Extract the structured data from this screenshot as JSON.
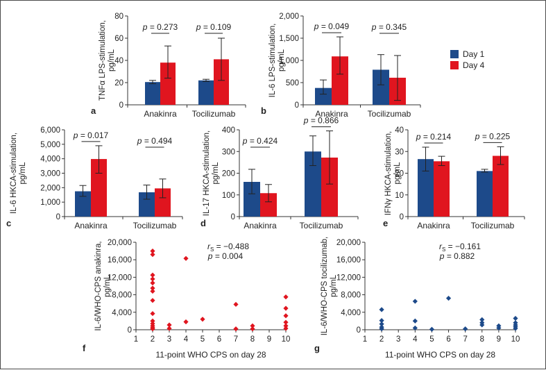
{
  "colors": {
    "day1": "#1d4a8a",
    "day4": "#e0151f",
    "axis": "#333333"
  },
  "legend": {
    "day1": "Day 1",
    "day4": "Day 4"
  },
  "chart_data": [
    {
      "panel": "a",
      "type": "bar",
      "ylabel": [
        "TNFα LPS-stimulation,",
        "pg/mL"
      ],
      "categories": [
        "Anakinra",
        "Tocilizumab"
      ],
      "ylim": [
        0,
        80
      ],
      "yticks": [
        0,
        20,
        40,
        60,
        80
      ],
      "ytick_labels": [
        "0",
        "20",
        "40",
        "60",
        "80"
      ],
      "series": [
        {
          "name": "Day 1",
          "values": [
            20.5,
            22
          ],
          "err_low": [
            19,
            21
          ],
          "err_high": [
            22,
            23
          ]
        },
        {
          "name": "Day 4",
          "values": [
            38,
            41
          ],
          "err_low": [
            24,
            22
          ],
          "err_high": [
            53,
            60
          ]
        }
      ],
      "pvalues": [
        "p = 0.273",
        "p = 0.109"
      ]
    },
    {
      "panel": "b",
      "type": "bar",
      "ylabel": [
        "IL-6 LPS-stimulation,",
        "pg/mL"
      ],
      "categories": [
        "Anakinra",
        "Tocilizumab"
      ],
      "ylim": [
        0,
        2000
      ],
      "yticks": [
        0,
        500,
        1000,
        1500,
        2000
      ],
      "ytick_labels": [
        "0",
        "500",
        "1,000",
        "1,500",
        "2,000"
      ],
      "series": [
        {
          "name": "Day 1",
          "values": [
            380,
            790
          ],
          "err_low": [
            240,
            450
          ],
          "err_high": [
            560,
            1130
          ]
        },
        {
          "name": "Day 4",
          "values": [
            1090,
            610
          ],
          "err_low": [
            690,
            100
          ],
          "err_high": [
            1530,
            1110
          ]
        }
      ],
      "pvalues": [
        "p = 0.049",
        "p = 0.345"
      ]
    },
    {
      "panel": "c",
      "type": "bar",
      "ylabel": [
        "IL-6 HKCA-stimulation,",
        "pg/mL"
      ],
      "categories": [
        "Anakinra",
        "Tocilizumab"
      ],
      "ylim": [
        0,
        6000
      ],
      "yticks": [
        0,
        1000,
        2000,
        3000,
        4000,
        5000,
        6000
      ],
      "ytick_labels": [
        "0",
        "1,000",
        "2,000",
        "3,000",
        "4,000",
        "5,000",
        "6,000"
      ],
      "series": [
        {
          "name": "Day 1",
          "values": [
            1750,
            1680
          ],
          "err_low": [
            1400,
            1200
          ],
          "err_high": [
            2150,
            2180
          ]
        },
        {
          "name": "Day 4",
          "values": [
            3980,
            1950
          ],
          "err_low": [
            3000,
            1300
          ],
          "err_high": [
            4900,
            2600
          ]
        }
      ],
      "pvalues": [
        "p = 0.017",
        "p = 0.494"
      ]
    },
    {
      "panel": "d",
      "type": "bar",
      "ylabel": [
        "IL-17 HKCA-stimulation,",
        "pg/mL"
      ],
      "categories": [
        "Anakinra",
        "Tocilizumab"
      ],
      "ylim": [
        0,
        400
      ],
      "yticks": [
        0,
        100,
        200,
        300,
        400
      ],
      "ytick_labels": [
        "0",
        "100",
        "200",
        "300",
        "400"
      ],
      "series": [
        {
          "name": "Day 1",
          "values": [
            160,
            300
          ],
          "err_low": [
            105,
            235
          ],
          "err_high": [
            218,
            372
          ]
        },
        {
          "name": "Day 4",
          "values": [
            108,
            272
          ],
          "err_low": [
            68,
            150
          ],
          "err_high": [
            148,
            395
          ]
        }
      ],
      "pvalues": [
        "p = 0.424",
        "p = 0.866"
      ]
    },
    {
      "panel": "e",
      "type": "bar",
      "ylabel": [
        "IFNγ HKCA-stimulation,",
        "pg/mL"
      ],
      "categories": [
        "Anakinra",
        "Tocilizumab"
      ],
      "ylim": [
        0,
        40
      ],
      "yticks": [
        0,
        10,
        20,
        30,
        40
      ],
      "ytick_labels": [
        "0",
        "10",
        "20",
        "30",
        "40"
      ],
      "series": [
        {
          "name": "Day 1",
          "values": [
            26.5,
            21
          ],
          "err_low": [
            21,
            20.5
          ],
          "err_high": [
            32,
            21.8
          ]
        },
        {
          "name": "Day 4",
          "values": [
            25.5,
            28
          ],
          "err_low": [
            23.5,
            24
          ],
          "err_high": [
            27.8,
            32.2
          ]
        }
      ],
      "pvalues": [
        "p = 0.214",
        "p = 0.225"
      ]
    },
    {
      "panel": "f",
      "type": "scatter",
      "ylabel": [
        "IL-6/WHO-CPS anakinra,",
        "pg/mL"
      ],
      "xlabel": "11-point WHO CPS on day 28",
      "xlim": [
        1,
        10
      ],
      "xticks": [
        1,
        2,
        3,
        4,
        5,
        6,
        7,
        8,
        9,
        10
      ],
      "ylim": [
        0,
        20000
      ],
      "yticks": [
        0,
        4000,
        8000,
        12000,
        16000,
        20000
      ],
      "ytick_labels": [
        "0",
        "4,000",
        "8,000",
        "12,000",
        "16,000",
        "20,000"
      ],
      "series_color": "day4",
      "points": [
        [
          2,
          18000
        ],
        [
          2,
          17200
        ],
        [
          2,
          12500
        ],
        [
          2,
          11600
        ],
        [
          2,
          10700
        ],
        [
          2,
          9500
        ],
        [
          2,
          8800
        ],
        [
          2,
          6700
        ],
        [
          2,
          3700
        ],
        [
          2,
          2000
        ],
        [
          2,
          1400
        ],
        [
          2,
          900
        ],
        [
          2,
          500
        ],
        [
          2,
          200
        ],
        [
          3,
          1100
        ],
        [
          3,
          300
        ],
        [
          4,
          16300
        ],
        [
          4,
          1800
        ],
        [
          5,
          2400
        ],
        [
          7,
          5800
        ],
        [
          7,
          200
        ],
        [
          8,
          900
        ],
        [
          8,
          200
        ],
        [
          10,
          7500
        ],
        [
          10,
          4900
        ],
        [
          10,
          3200
        ],
        [
          10,
          1700
        ],
        [
          10,
          900
        ],
        [
          10,
          300
        ]
      ],
      "stats": {
        "rs_label": "r",
        "rs_sub": "S",
        "rs_value": " = −0.488",
        "p": "p = 0.004"
      }
    },
    {
      "panel": "g",
      "type": "scatter",
      "ylabel": [
        "IL-6/WHO-CPS tocilizumab,",
        "pg/mL"
      ],
      "xlabel": "11-point WHO CPS on day 28",
      "xlim": [
        1,
        10
      ],
      "xticks": [
        1,
        2,
        3,
        4,
        5,
        6,
        7,
        8,
        9,
        10
      ],
      "ylim": [
        0,
        20000
      ],
      "yticks": [
        0,
        4000,
        8000,
        12000,
        16000,
        20000
      ],
      "ytick_labels": [
        "0",
        "4,000",
        "8,000",
        "12,000",
        "16,000",
        "20,000"
      ],
      "series_color": "day1",
      "points": [
        [
          2,
          4600
        ],
        [
          2,
          2100
        ],
        [
          2,
          1300
        ],
        [
          2,
          600
        ],
        [
          2,
          200
        ],
        [
          4,
          6500
        ],
        [
          4,
          2000
        ],
        [
          4,
          400
        ],
        [
          5,
          100
        ],
        [
          6,
          7200
        ],
        [
          7,
          200
        ],
        [
          8,
          2300
        ],
        [
          8,
          1600
        ],
        [
          8,
          1100
        ],
        [
          9,
          900
        ],
        [
          9,
          400
        ],
        [
          10,
          2600
        ],
        [
          10,
          1600
        ],
        [
          10,
          1100
        ],
        [
          10,
          700
        ],
        [
          10,
          300
        ]
      ],
      "stats": {
        "rs_label": "r",
        "rs_sub": "S",
        "rs_value": " = −0.161",
        "p": "p = 0.882"
      }
    }
  ]
}
